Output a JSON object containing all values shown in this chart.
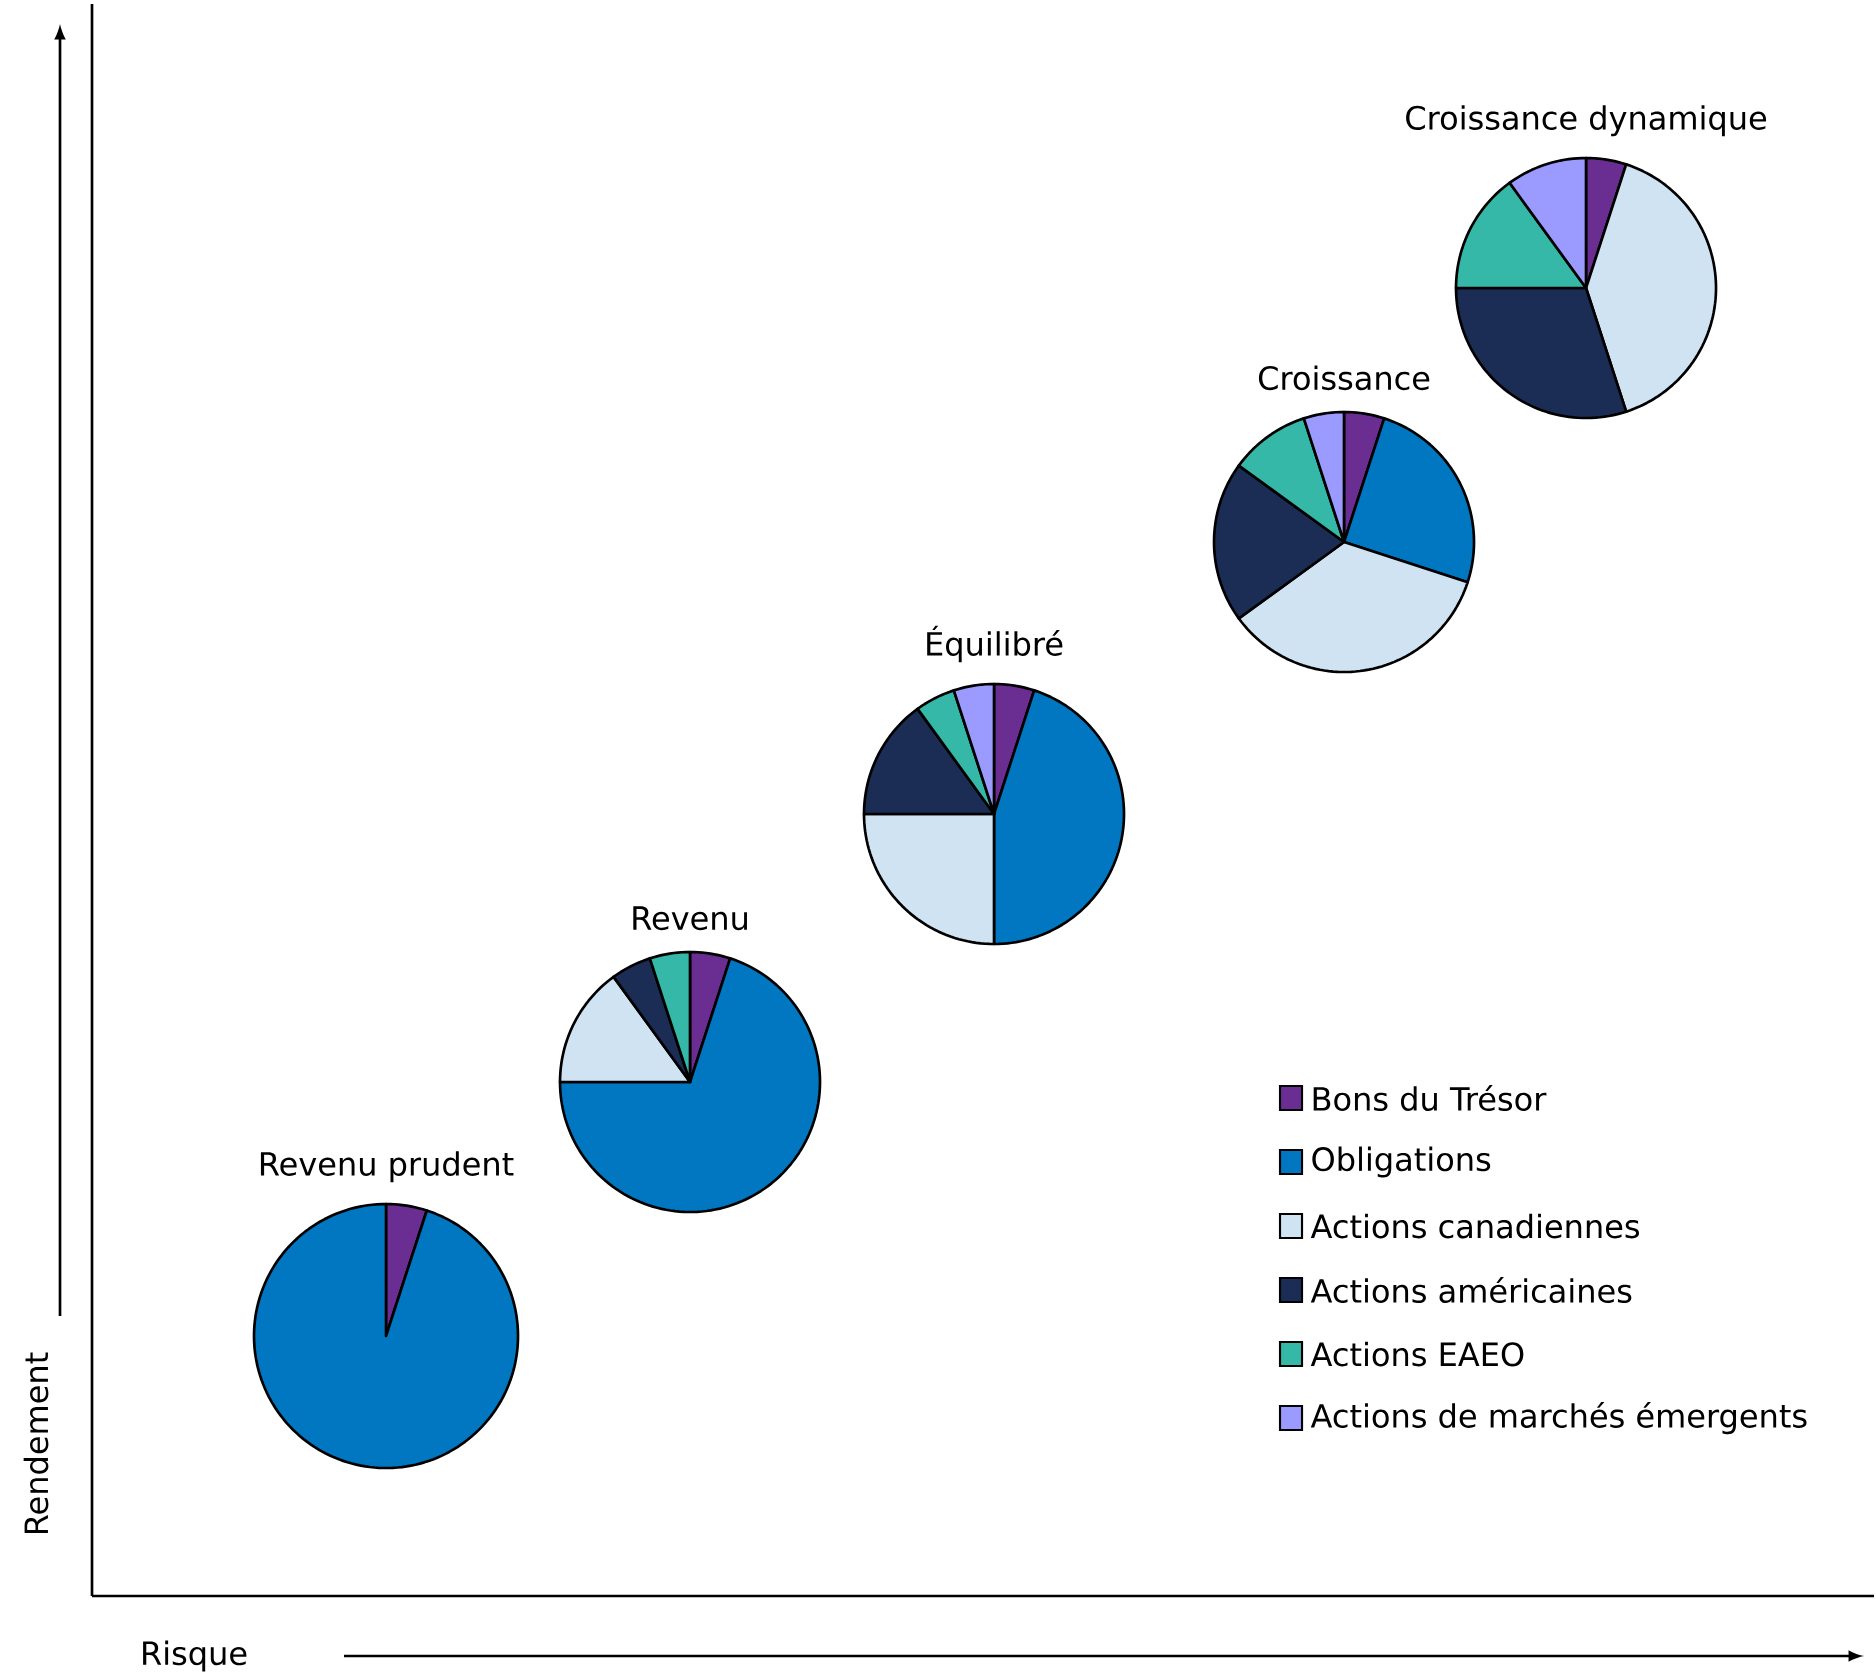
{
  "chart_data": [
    {
      "type": "pie",
      "title": "Revenu prudent",
      "categories": [
        null,
        null
      ],
      "values": [
        5,
        95
      ],
      "colors": [
        "#6a2d91",
        "#0077c0"
      ]
    },
    {
      "type": "pie",
      "title": "Revenu",
      "categories": [
        null,
        null,
        null,
        null,
        null
      ],
      "values": [
        5,
        70,
        15,
        5,
        5
      ],
      "colors": [
        "#6a2d91",
        "#0077c0",
        "#cfe3f3",
        "#1b2d55",
        "#35b8a8"
      ]
    },
    {
      "type": "pie",
      "title": "Équilibré",
      "categories": [
        "Bons du Trésor",
        "Obligations",
        "Actions canadiennes",
        "Actions américaines",
        "Actions EAEO",
        "Actions de marchés émergents"
      ],
      "values": [
        5,
        45,
        25,
        15,
        5,
        5
      ],
      "colors": [
        "#6a2d91",
        "#0077c0",
        "#cfe3f3",
        "#1b2d55",
        "#35b8a8",
        "#9b9bff"
      ],
      "legend": "bottom right"
    },
    {
      "type": "pie",
      "title": "Croissance",
      "categories": [
        null,
        null,
        null,
        null,
        null,
        null
      ],
      "values": [
        5,
        25,
        35,
        20,
        10,
        5
      ],
      "colors": [
        "#6a2d91",
        "#0077c0",
        "#cfe3f3",
        "#1b2d55",
        "#35b8a8",
        "#9b9bff"
      ]
    },
    {
      "type": "pie",
      "title": "Croissance dynamique",
      "categories": [
        null,
        null,
        null,
        null,
        null
      ],
      "values": [
        5,
        40,
        30,
        15,
        10
      ],
      "colors": [
        "#6a2d91",
        "#cfe3f3",
        "#1b2d55",
        "#35b8a8",
        "#9b9bff"
      ]
    },
    {
      "type": "other",
      "xlabel": "Risque",
      "ylabel": "Rendement"
    }
  ]
}
